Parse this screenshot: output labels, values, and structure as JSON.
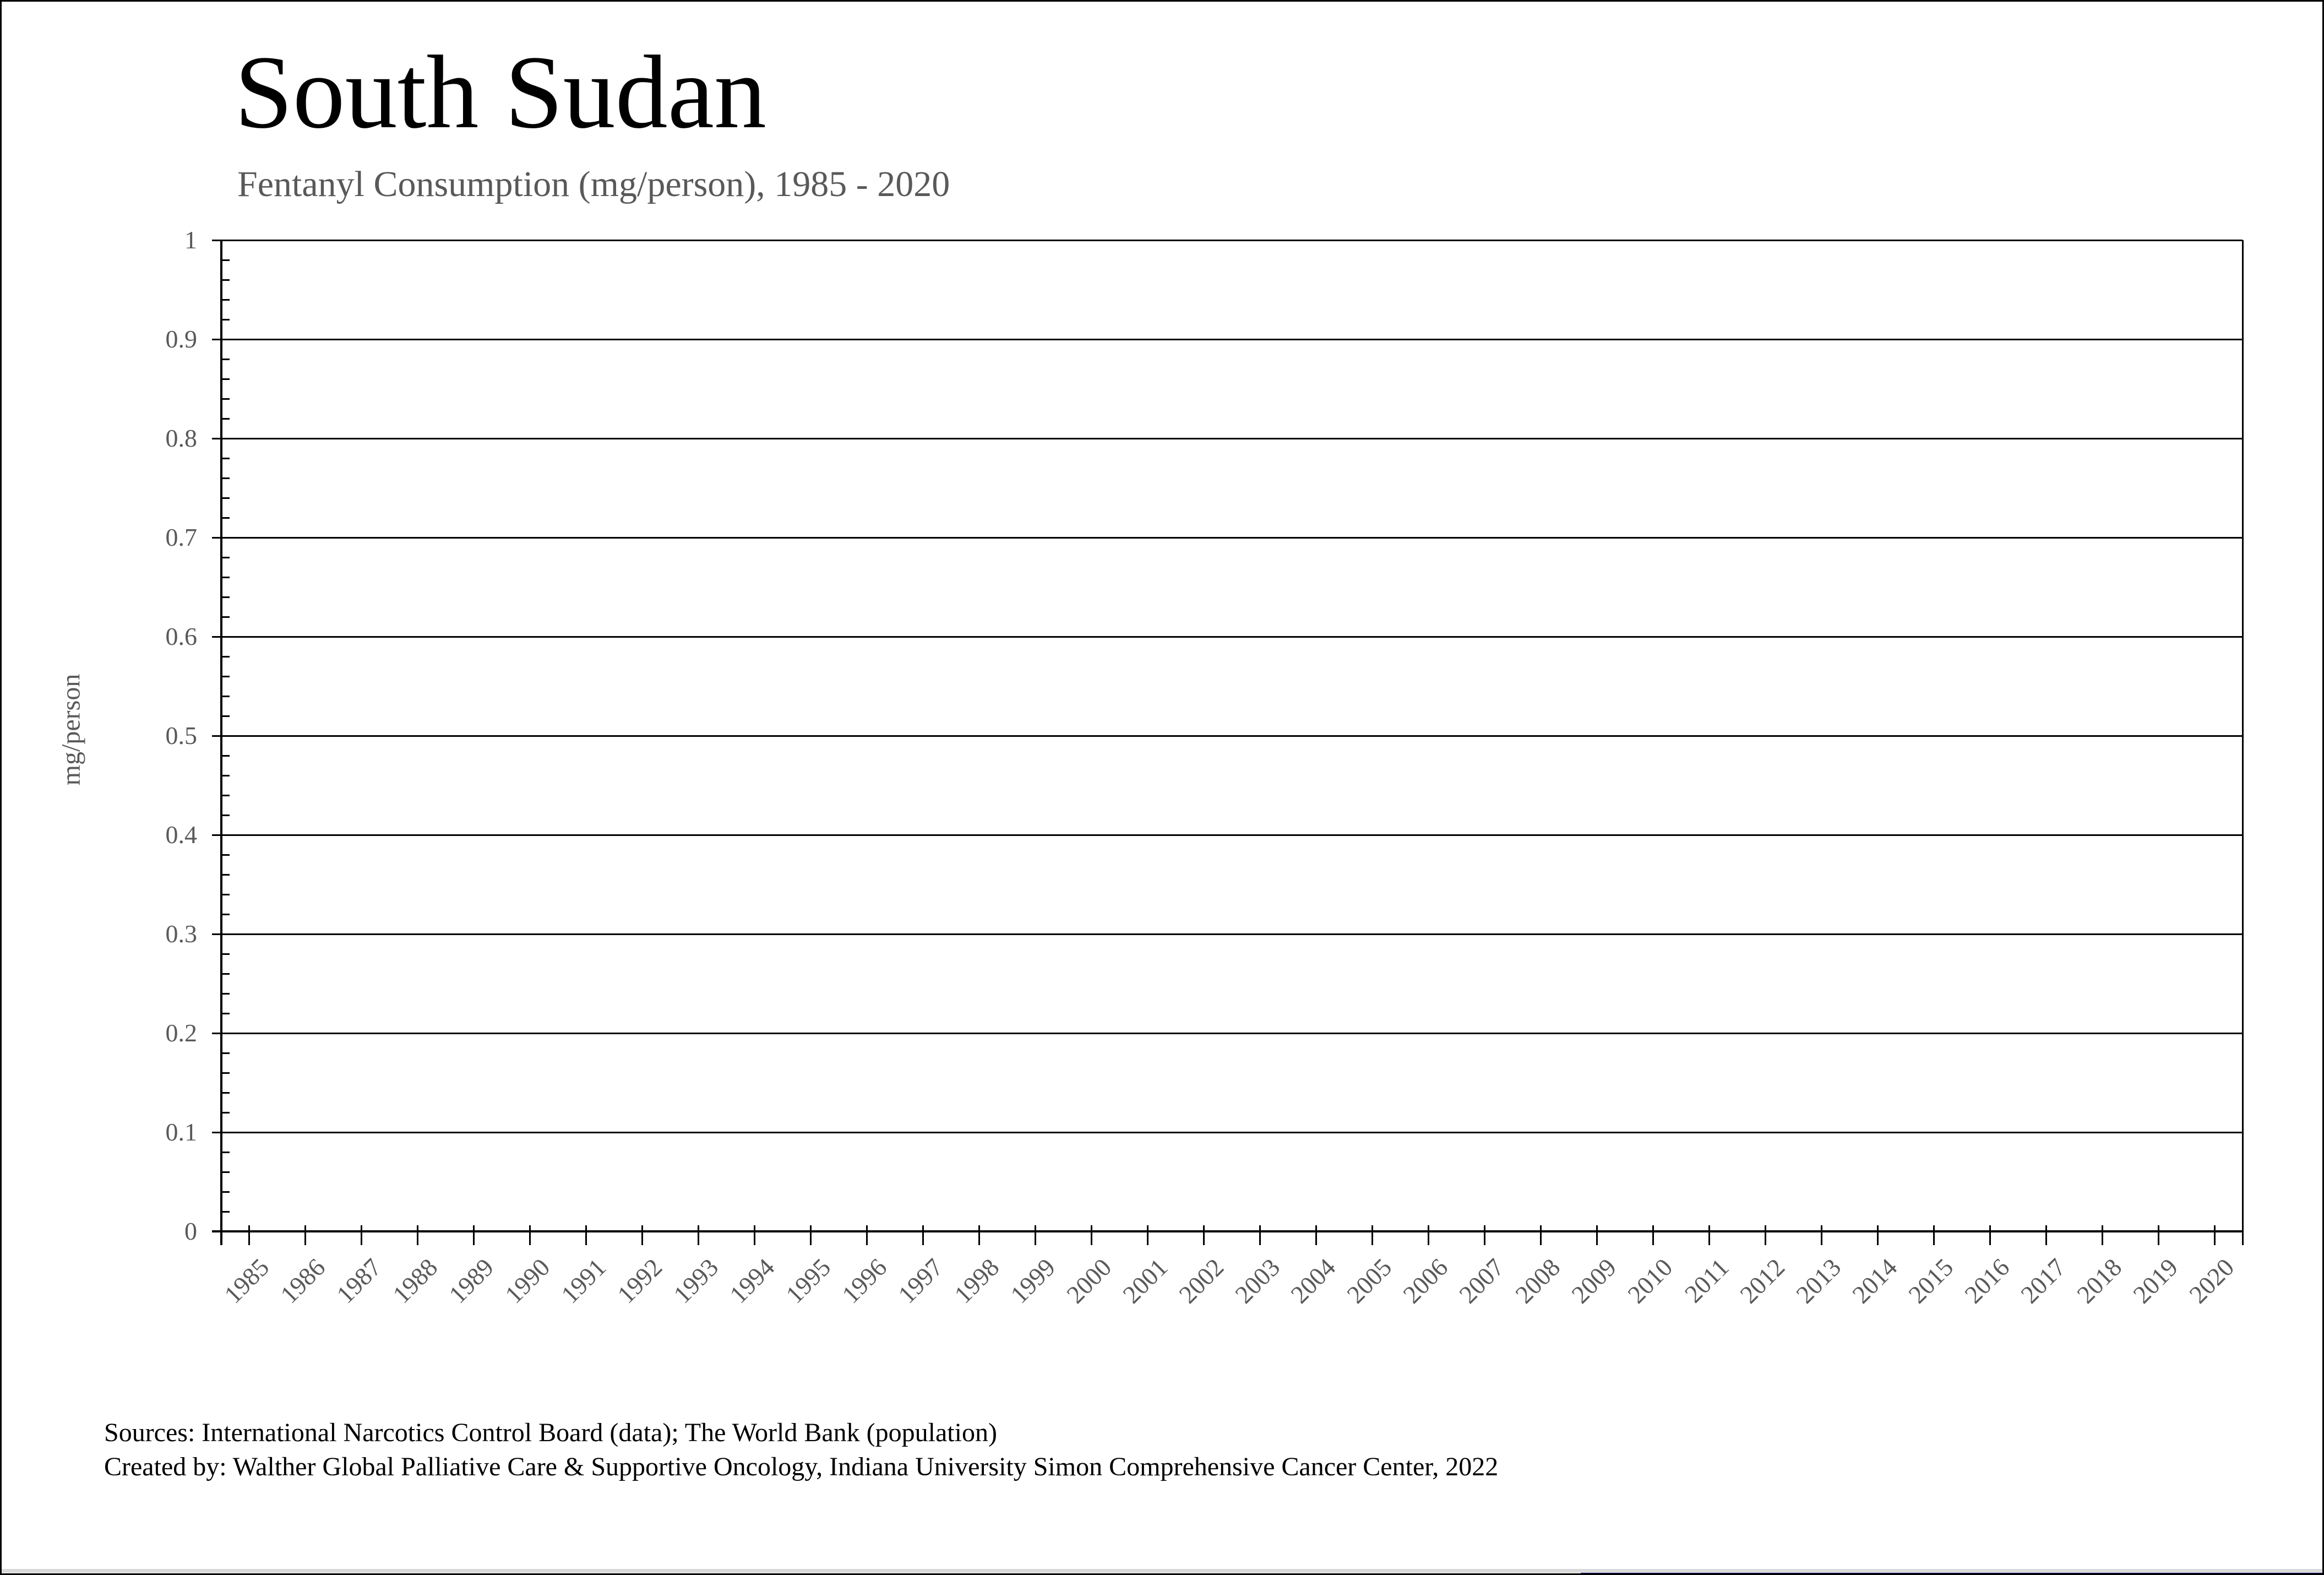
{
  "header": {
    "title": "South Sudan",
    "subtitle": "Fentanyl Consumption (mg/person), 1985 - 2020"
  },
  "chart_data": {
    "type": "line",
    "title": "South Sudan",
    "subtitle": "Fentanyl Consumption (mg/person), 1985 - 2020",
    "xlabel": "",
    "ylabel": "mg/person",
    "ylim": [
      0,
      1
    ],
    "ytick_step": 0.1,
    "y_minor_tick_step": 0.02,
    "ytick_labels": [
      "0",
      "0.1",
      "0.2",
      "0.3",
      "0.4",
      "0.5",
      "0.6",
      "0.7",
      "0.8",
      "0.9",
      "1"
    ],
    "categories": [
      "1985",
      "1986",
      "1987",
      "1988",
      "1989",
      "1990",
      "1991",
      "1992",
      "1993",
      "1994",
      "1995",
      "1996",
      "1997",
      "1998",
      "1999",
      "2000",
      "2001",
      "2002",
      "2003",
      "2004",
      "2005",
      "2006",
      "2007",
      "2008",
      "2009",
      "2010",
      "2011",
      "2012",
      "2013",
      "2014",
      "2015",
      "2016",
      "2017",
      "2018",
      "2019",
      "2020"
    ],
    "series": [],
    "note": "plot area is empty - no data line or markers are drawn",
    "grid": "horizontal gridlines at every 0.1, plot area framed top and right",
    "legend": "none"
  },
  "footer": {
    "line1": "Sources: International Narcotics Control Board (data); The World Bank (population)",
    "line2": "Created by: Walther Global Palliative Care & Supportive Oncology, Indiana University Simon Comprehensive Cancer Center, 2022"
  },
  "colors": {
    "title_black": "#000000",
    "label_gray": "#595959",
    "axis_black": "#000000",
    "background": "#ffffff",
    "bottom_strip_gray": "#d9d9d9",
    "bottom_strip_blue": "#14147d"
  }
}
